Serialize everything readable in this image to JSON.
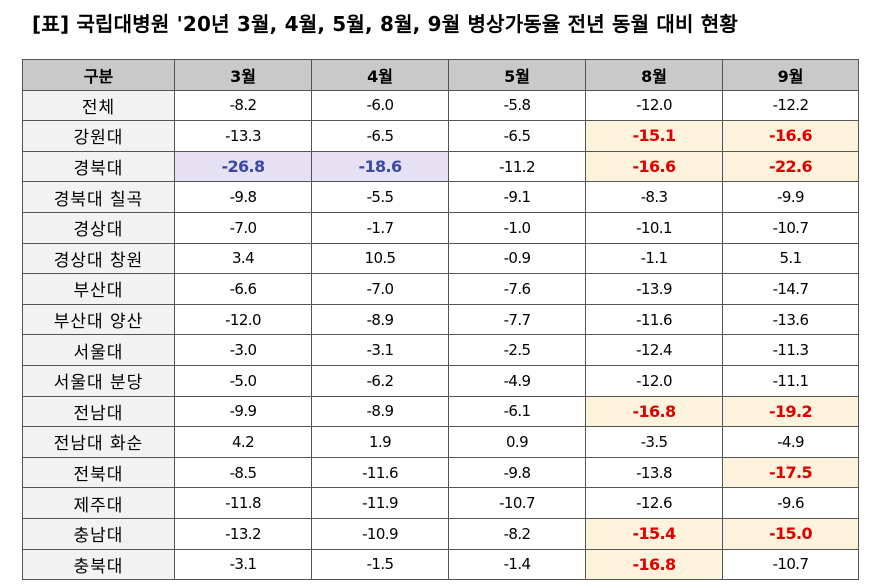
{
  "title": "[표] 국립대병원 '20년 3월, 4월, 5월, 8월, 9월 병상가동율 전년 동월 대비 현황",
  "table": {
    "headers": [
      "구분",
      "3월",
      "4월",
      "5월",
      "8월",
      "9월"
    ],
    "rows": [
      {
        "name": "전체",
        "values": [
          "-8.2",
          "-6.0",
          "-5.8",
          "-12.0",
          "-12.2"
        ]
      },
      {
        "name": "강원대",
        "values": [
          "-13.3",
          "-6.5",
          "-6.5",
          "-15.1",
          "-16.6"
        ]
      },
      {
        "name": "경북대",
        "values": [
          "-26.8",
          "-18.6",
          "-11.2",
          "-16.6",
          "-22.6"
        ]
      },
      {
        "name": "경북대 칠곡",
        "values": [
          "-9.8",
          "-5.5",
          "-9.1",
          "-8.3",
          "-9.9"
        ]
      },
      {
        "name": "경상대",
        "values": [
          "-7.0",
          "-1.7",
          "-1.0",
          "-10.1",
          "-10.7"
        ]
      },
      {
        "name": "경상대 창원",
        "values": [
          "3.4",
          "10.5",
          "-0.9",
          "-1.1",
          "5.1"
        ]
      },
      {
        "name": "부산대",
        "values": [
          "-6.6",
          "-7.0",
          "-7.6",
          "-13.9",
          "-14.7"
        ]
      },
      {
        "name": "부산대 양산",
        "values": [
          "-12.0",
          "-8.9",
          "-7.7",
          "-11.6",
          "-13.6"
        ]
      },
      {
        "name": "서울대",
        "values": [
          "-3.0",
          "-3.1",
          "-2.5",
          "-12.4",
          "-11.3"
        ]
      },
      {
        "name": "서울대 분당",
        "values": [
          "-5.0",
          "-6.2",
          "-4.9",
          "-12.0",
          "-11.1"
        ]
      },
      {
        "name": "전남대",
        "values": [
          "-9.9",
          "-8.9",
          "-6.1",
          "-16.8",
          "-19.2"
        ]
      },
      {
        "name": "전남대 화순",
        "values": [
          "4.2",
          "1.9",
          "0.9",
          "-3.5",
          "-4.9"
        ]
      },
      {
        "name": "전북대",
        "values": [
          "-8.5",
          "-11.6",
          "-9.8",
          "-13.8",
          "-17.5"
        ]
      },
      {
        "name": "제주대",
        "values": [
          "-11.8",
          "-11.9",
          "-10.7",
          "-12.6",
          "-9.6"
        ]
      },
      {
        "name": "충남대",
        "values": [
          "-13.2",
          "-10.9",
          "-8.2",
          "-15.4",
          "-15.0"
        ]
      },
      {
        "name": "충북대",
        "values": [
          "-3.1",
          "-1.5",
          "-1.4",
          "-16.8",
          "-10.7"
        ]
      }
    ]
  },
  "highlights": {
    "purple_color": "#3a49a3",
    "purple_bg": "#e6e0f3",
    "red_color": "#e00000",
    "yellow_bg": "#fdf3dc"
  }
}
